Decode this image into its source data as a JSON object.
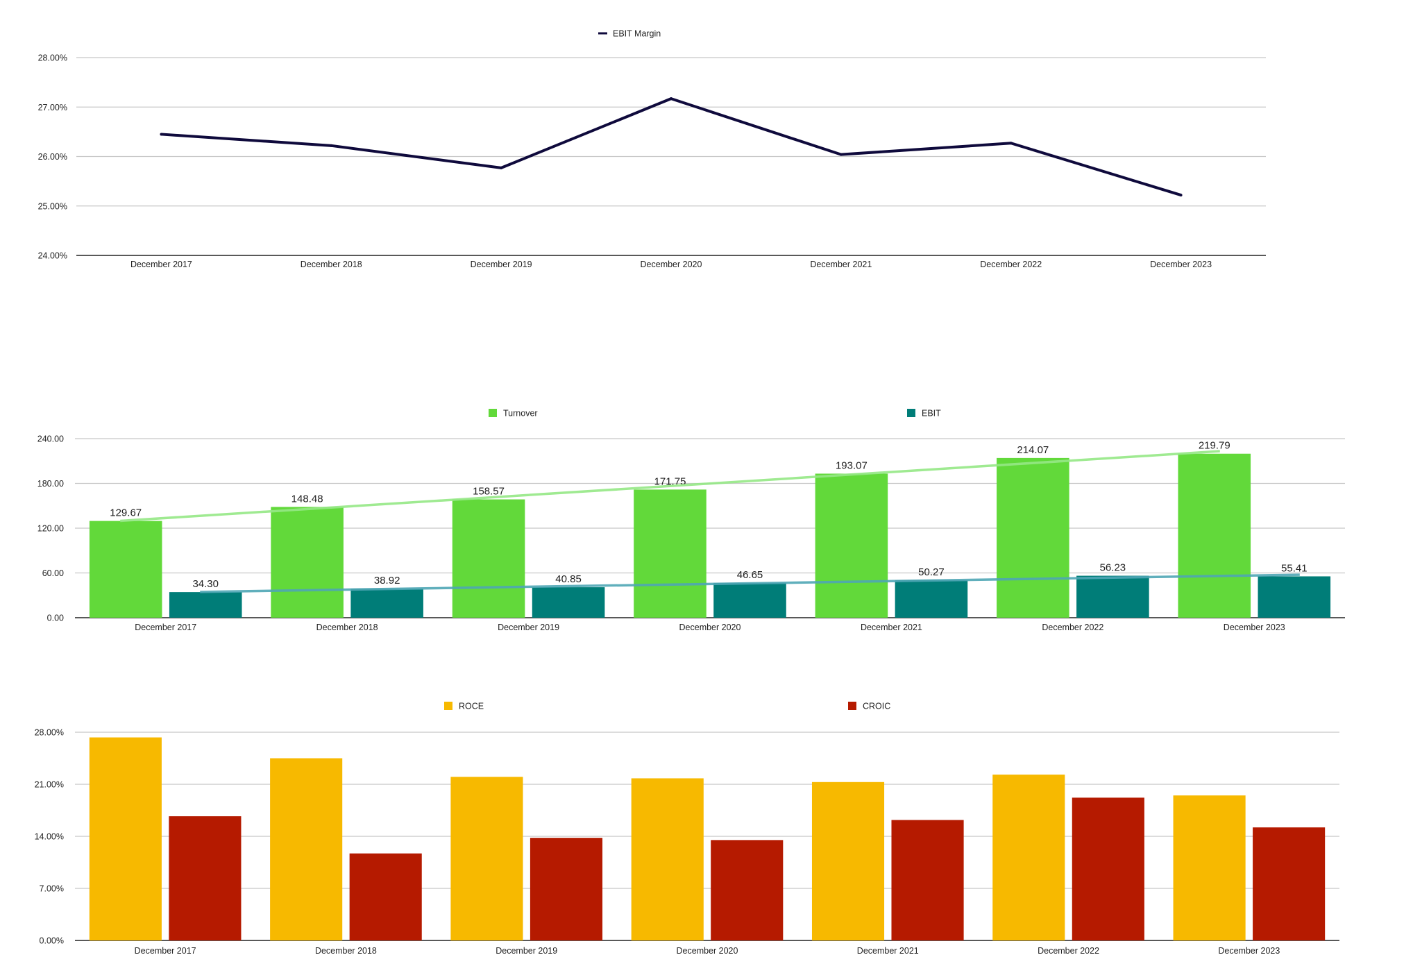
{
  "chart_data": [
    {
      "type": "line",
      "title": "",
      "categories": [
        "December 2017",
        "December 2018",
        "December 2019",
        "December 2020",
        "December 2021",
        "December 2022",
        "December 2023"
      ],
      "series": [
        {
          "name": "EBIT Margin",
          "color": "#0f0a3c",
          "values": [
            26.45,
            26.22,
            25.77,
            27.17,
            26.04,
            26.27,
            25.22
          ]
        }
      ],
      "yticks": [
        "24.00%",
        "25.00%",
        "26.00%",
        "27.00%",
        "28.00%"
      ],
      "ylim": [
        24,
        28
      ],
      "grid": true,
      "legend": "top-center"
    },
    {
      "type": "bar",
      "title": "",
      "categories": [
        "December 2017",
        "December 2018",
        "December 2019",
        "December 2020",
        "December 2021",
        "December 2022",
        "December 2023"
      ],
      "series": [
        {
          "name": "Turnover",
          "color": "#62d93a",
          "trend_color": "#95e886",
          "values": [
            129.67,
            148.48,
            158.57,
            171.75,
            193.07,
            214.07,
            219.79
          ],
          "labels": [
            "129.67",
            "148.48",
            "158.57",
            "171.75",
            "193.07",
            "214.07",
            "219.79"
          ]
        },
        {
          "name": "EBIT",
          "color": "#007d78",
          "trend_color": "#4fa7b5",
          "values": [
            34.3,
            38.92,
            40.85,
            46.65,
            50.27,
            56.23,
            55.41
          ],
          "labels": [
            "34.30",
            "38.92",
            "40.85",
            "46.65",
            "50.27",
            "56.23",
            "55.41"
          ]
        }
      ],
      "yticks": [
        "0.00",
        "60.00",
        "120.00",
        "180.00",
        "240.00"
      ],
      "ylim": [
        0,
        240
      ],
      "trendlines": true,
      "grid": true,
      "legend": "top"
    },
    {
      "type": "bar",
      "title": "",
      "categories": [
        "December 2017",
        "December 2018",
        "December 2019",
        "December 2020",
        "December 2021",
        "December 2022",
        "December 2023"
      ],
      "series": [
        {
          "name": "ROCE",
          "color": "#f7b900",
          "values": [
            27.3,
            24.5,
            22.0,
            21.8,
            21.3,
            22.3,
            19.5
          ]
        },
        {
          "name": "CROIC",
          "color": "#b51a00",
          "values": [
            16.7,
            11.7,
            13.8,
            13.5,
            16.2,
            19.2,
            15.2
          ]
        }
      ],
      "yticks": [
        "0.00%",
        "7.00%",
        "14.00%",
        "21.00%",
        "28.00%"
      ],
      "ylim": [
        0,
        28
      ],
      "grid": true,
      "legend": "top"
    }
  ]
}
